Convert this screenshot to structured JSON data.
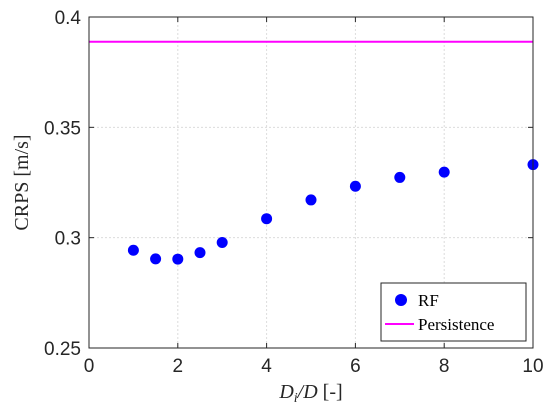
{
  "chart_data": {
    "type": "scatter",
    "title": "",
    "xlabel_main": "D",
    "xlabel_sub": "i",
    "xlabel_rest": "/D",
    "xlabel_unit": " [-]",
    "ylabel": "CRPS [m/s]",
    "xlim": [
      0,
      10
    ],
    "ylim": [
      0.25,
      0.4
    ],
    "xticks": [
      0,
      2,
      4,
      6,
      8,
      10
    ],
    "xtick_labels": [
      "0",
      "2",
      "4",
      "6",
      "8",
      "10"
    ],
    "yticks": [
      0.25,
      0.3,
      0.35,
      0.4
    ],
    "ytick_labels": [
      "0.25",
      "0.3",
      "0.35",
      "0.4"
    ],
    "grid": true,
    "legend_position": "bottom-right",
    "series": [
      {
        "name": "RF",
        "kind": "scatter",
        "color": "#0000ff",
        "x": [
          1,
          1.5,
          2,
          2.5,
          3,
          4,
          5,
          6,
          7,
          8,
          10
        ],
        "y": [
          0.2943,
          0.2904,
          0.2903,
          0.2932,
          0.2978,
          0.3086,
          0.3171,
          0.3233,
          0.3273,
          0.3297,
          0.3331
        ]
      },
      {
        "name": "Persistence",
        "kind": "hline",
        "color": "#ff00ff",
        "y": 0.3888
      }
    ]
  }
}
